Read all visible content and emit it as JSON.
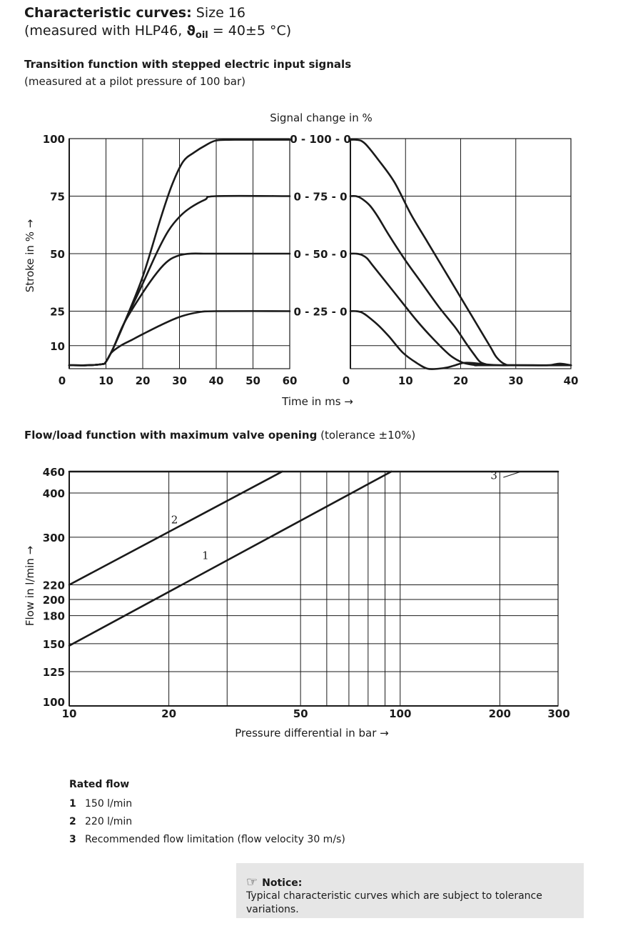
{
  "header": {
    "title_bold": "Characteristic curves:",
    "title_rest": " Size 16",
    "subtitle_pre": "(measured with HLP46, ",
    "subtitle_theta": "ϑ",
    "subtitle_sub": "oil",
    "subtitle_post": " = 40±5 °C)"
  },
  "section1": {
    "title": "Transition function with stepped electric input signals",
    "note": "(measured at a pilot pressure of 100 bar)"
  },
  "section2": {
    "title": "Flow/load function with maximum valve opening",
    "note": " (tolerance ±10%)"
  },
  "legend": {
    "title": "Rated flow",
    "items": [
      {
        "num": "1",
        "text": "150 l/min"
      },
      {
        "num": "2",
        "text": "220 l/min"
      },
      {
        "num": "3",
        "text": "Recommended flow limitation (flow velocity 30 m/s)"
      }
    ]
  },
  "notice": {
    "icon": "hand-pointing-icon",
    "icon_glyph": "☞",
    "title": "Notice:",
    "text": "Typical characteristic curves which are subject to tolerance variations."
  },
  "chart_data": [
    {
      "type": "line",
      "panel": "switch-on",
      "title": "",
      "xlabel": "Time in ms →",
      "ylabel": "Stroke in % →",
      "top_label": "Signal change in %",
      "xlim": [
        0,
        60
      ],
      "ylim": [
        0,
        100
      ],
      "x_ticks": [
        "0",
        "10",
        "20",
        "30",
        "40",
        "50",
        "60"
      ],
      "x_tick_values": [
        0,
        10,
        20,
        30,
        40,
        50,
        60
      ],
      "y_ticks": [
        "10",
        "25",
        "50",
        "75",
        "100"
      ],
      "y_tick_values": [
        10,
        25,
        50,
        75,
        100
      ],
      "series": [
        {
          "name": "0 - 100 - 0",
          "x": [
            0,
            5,
            9,
            10,
            12,
            15,
            20,
            25,
            28,
            31,
            34,
            37,
            40,
            45,
            60
          ],
          "y": [
            1.5,
            1.5,
            2,
            3,
            9,
            20,
            40,
            66,
            80,
            90,
            94,
            97,
            99.2,
            99.5,
            99.5
          ]
        },
        {
          "name": "0 - 75 - 0",
          "x": [
            0,
            5,
            9,
            10,
            12,
            15,
            20,
            24,
            27,
            30,
            33,
            37,
            40,
            60
          ],
          "y": [
            1.5,
            1.5,
            2,
            3,
            9,
            20,
            37,
            51,
            60,
            66,
            70,
            73.5,
            75,
            75
          ]
        },
        {
          "name": "0 - 50 - 0",
          "x": [
            0,
            5,
            9,
            10,
            12,
            15,
            20,
            24,
            27,
            30,
            33,
            37,
            40,
            60
          ],
          "y": [
            1.5,
            1.5,
            2,
            3,
            9,
            20,
            33,
            42,
            47,
            49.3,
            50,
            50,
            50,
            50
          ]
        },
        {
          "name": "0 - 25 - 0",
          "x": [
            0,
            5,
            9,
            10,
            11.5,
            14,
            17,
            20,
            25,
            30,
            35,
            40,
            60
          ],
          "y": [
            1.5,
            1.5,
            2,
            3,
            7,
            10,
            12.5,
            15,
            19,
            22.5,
            24.5,
            25,
            25
          ]
        }
      ]
    },
    {
      "type": "line",
      "panel": "switch-off",
      "title": "",
      "xlabel": "Time in ms →",
      "xlim": [
        0,
        40
      ],
      "ylim": [
        0,
        100
      ],
      "x_ticks": [
        "0",
        "10",
        "20",
        "30",
        "40"
      ],
      "x_tick_values": [
        0,
        10,
        20,
        30,
        40
      ],
      "series": [
        {
          "name": "0 - 100 - 0",
          "x": [
            0,
            1,
            2,
            3,
            5,
            8,
            11,
            14,
            17,
            20,
            22,
            24,
            25.5,
            26.5,
            28,
            30,
            40
          ],
          "y": [
            99.5,
            99.5,
            99,
            97,
            91,
            81,
            67,
            55,
            43,
            31,
            23,
            15,
            9,
            5,
            2,
            1.5,
            1.5
          ]
        },
        {
          "name": "0 - 75 - 0",
          "x": [
            0,
            1,
            2,
            3.5,
            5,
            7,
            10,
            13,
            16,
            19,
            21,
            22.5,
            23.5,
            24.5,
            26,
            40
          ],
          "y": [
            75,
            75,
            74,
            71,
            66,
            58,
            47,
            37,
            27,
            18,
            11,
            6,
            3,
            2,
            1.5,
            1.5
          ]
        },
        {
          "name": "0 - 50 - 0",
          "x": [
            0,
            1,
            2,
            3,
            4,
            6,
            9,
            12,
            15,
            18,
            20,
            21.5,
            23,
            24,
            40
          ],
          "y": [
            50,
            50,
            49.5,
            48,
            45,
            39,
            30,
            21,
            13,
            6,
            3,
            2,
            1.5,
            1.5,
            1.5
          ]
        },
        {
          "name": "0 - 25 - 0",
          "x": [
            0,
            1,
            2,
            3,
            5,
            7,
            9.5,
            12,
            14,
            16,
            17.5,
            19,
            20.5,
            22,
            24,
            27,
            30,
            33,
            36,
            38,
            40
          ],
          "y": [
            25,
            25,
            24.5,
            23,
            19,
            14,
            7,
            2.5,
            0,
            0,
            0.5,
            1.5,
            2.5,
            2.5,
            2,
            1.5,
            1.5,
            1.5,
            1.5,
            2.2,
            1.5
          ]
        }
      ]
    },
    {
      "type": "line",
      "panel": "flow-load",
      "title": "",
      "xlabel": "Pressure differential in bar →",
      "ylabel": "Flow in l/min →",
      "x_scale": "log",
      "y_scale": "log",
      "xlim": [
        10,
        300
      ],
      "ylim": [
        100,
        460
      ],
      "x_ticks": [
        "10",
        "20",
        "50",
        "100",
        "200",
        "300"
      ],
      "x_tick_values": [
        10,
        20,
        50,
        100,
        200,
        300
      ],
      "x_grid_values": [
        10,
        20,
        30,
        50,
        60,
        70,
        80,
        90,
        100,
        200,
        300
      ],
      "y_ticks": [
        "100",
        "125",
        "150",
        "180",
        "200",
        "220",
        "300",
        "400",
        "460"
      ],
      "y_tick_values": [
        100,
        125,
        150,
        180,
        200,
        220,
        300,
        400,
        460
      ],
      "series": [
        {
          "name": "1",
          "x": [
            10,
            94
          ],
          "y": [
            148,
            460
          ]
        },
        {
          "name": "2",
          "x": [
            10,
            44
          ],
          "y": [
            220,
            460
          ]
        },
        {
          "name": "3",
          "x": [
            10,
            300
          ],
          "y": [
            460,
            460
          ]
        }
      ]
    }
  ]
}
